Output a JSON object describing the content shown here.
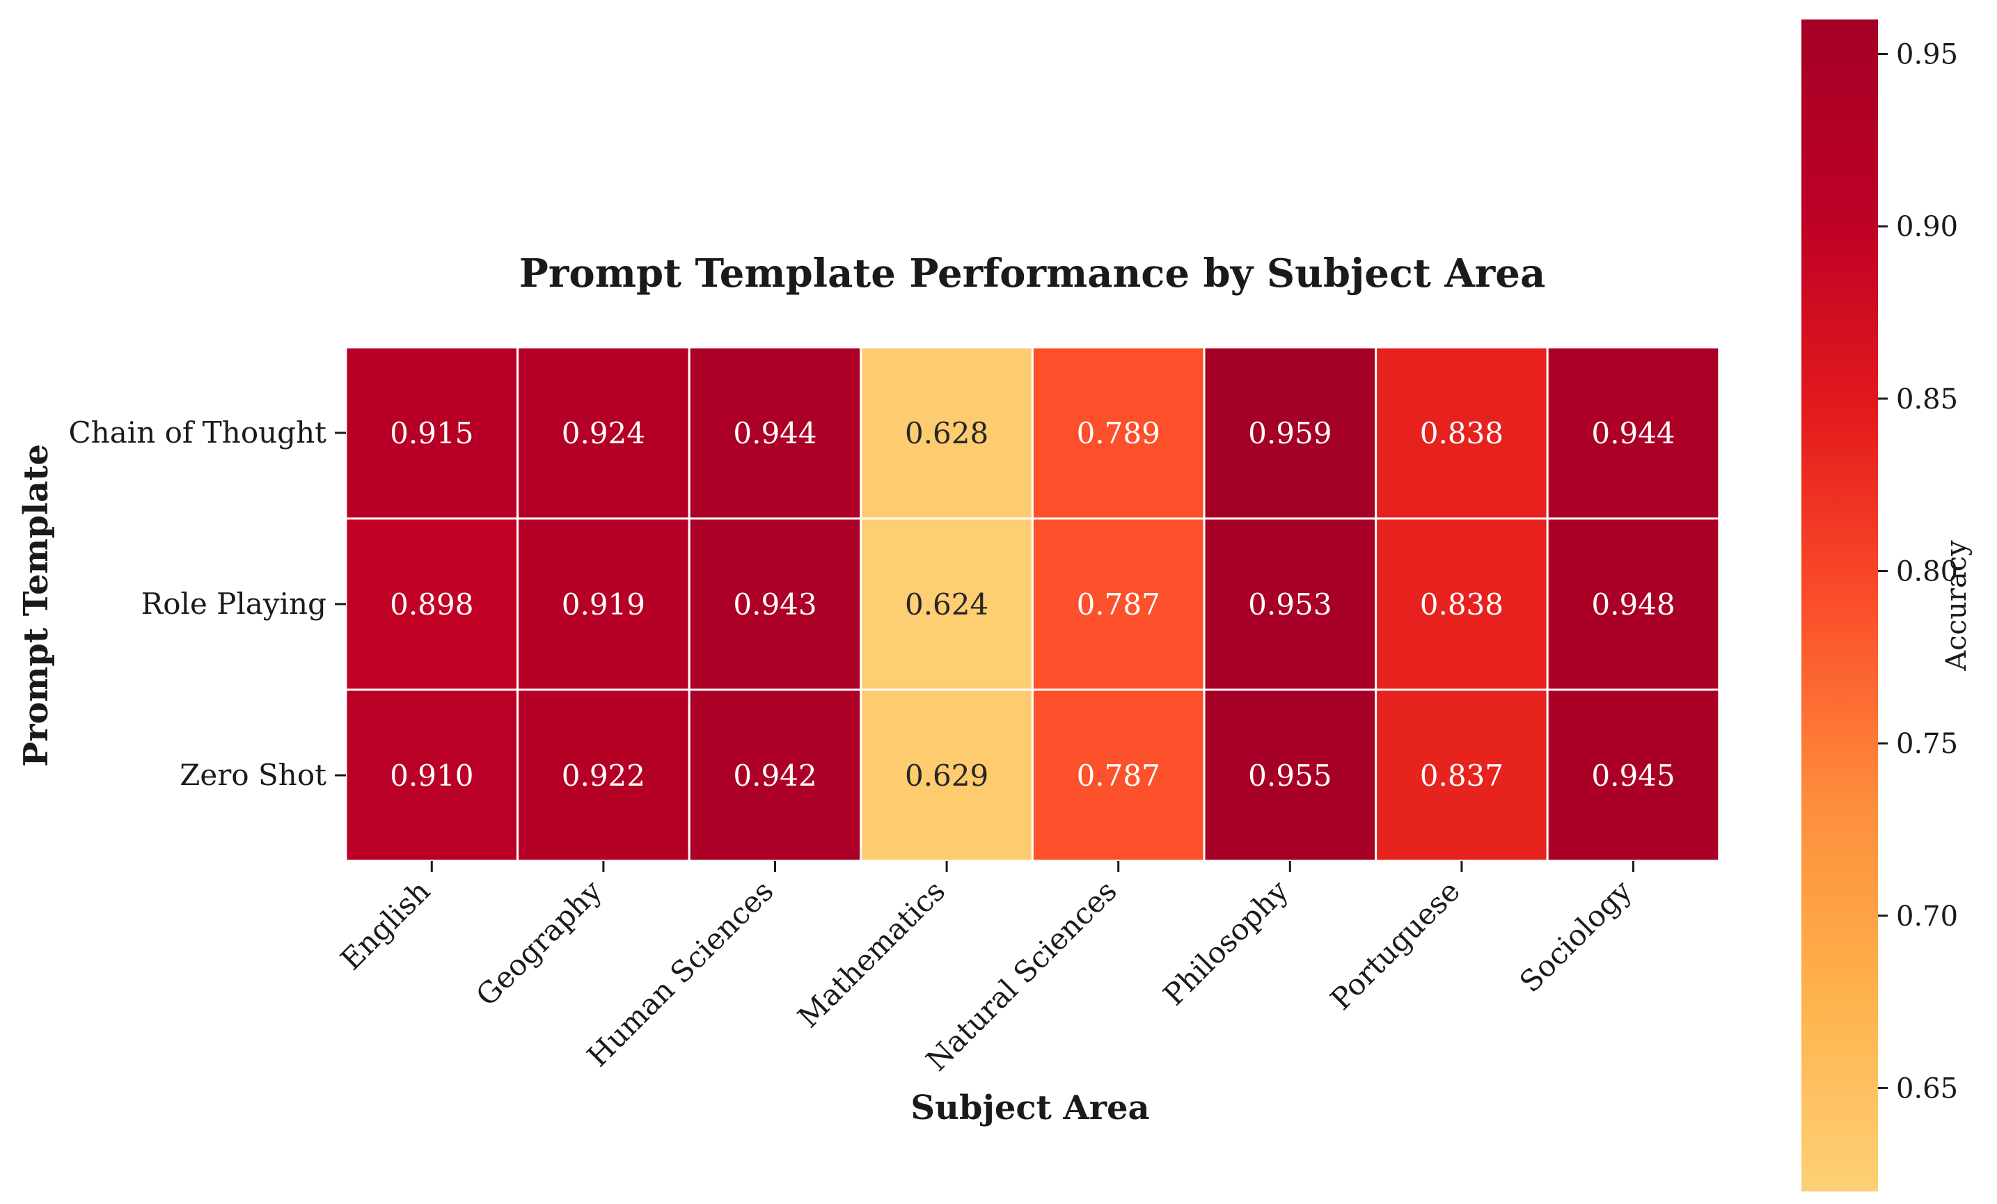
{
  "chart_data": {
    "type": "heatmap",
    "title": "Prompt Template Performance by Subject Area",
    "xlabel": "Subject Area",
    "ylabel": "Prompt Template",
    "colorbar_label": "Accuracy",
    "x_categories": [
      "English",
      "Geography",
      "Human Sciences",
      "Mathematics",
      "Natural Sciences",
      "Philosophy",
      "Portuguese",
      "Sociology"
    ],
    "y_categories": [
      "Chain of Thought",
      "Role Playing",
      "Zero Shot"
    ],
    "values": [
      [
        0.915,
        0.924,
        0.944,
        0.628,
        0.789,
        0.959,
        0.838,
        0.944
      ],
      [
        0.898,
        0.919,
        0.943,
        0.624,
        0.787,
        0.953,
        0.838,
        0.948
      ],
      [
        0.91,
        0.922,
        0.942,
        0.629,
        0.787,
        0.955,
        0.837,
        0.945
      ]
    ],
    "value_labels": [
      [
        "0.915",
        "0.924",
        "0.944",
        "0.628",
        "0.789",
        "0.959",
        "0.838",
        "0.944"
      ],
      [
        "0.898",
        "0.919",
        "0.943",
        "0.624",
        "0.787",
        "0.953",
        "0.838",
        "0.948"
      ],
      [
        "0.910",
        "0.922",
        "0.942",
        "0.629",
        "0.787",
        "0.955",
        "0.837",
        "0.945"
      ]
    ],
    "colorbar_range": [
      0.62,
      0.96
    ],
    "colorbar_ticks": [
      0.65,
      0.7,
      0.75,
      0.8,
      0.85,
      0.9,
      0.95
    ],
    "colorbar_tick_labels": [
      "0.65",
      "0.70",
      "0.75",
      "0.80",
      "0.85",
      "0.90",
      "0.95"
    ],
    "colormap": "YlOrRd",
    "colormap_stops": [
      "#fed076",
      "#feb24c",
      "#fd8d3c",
      "#fc4e2a",
      "#e31a1c",
      "#bd0026",
      "#a50026"
    ],
    "grid": false,
    "cell_border_color": "#ffffff"
  }
}
